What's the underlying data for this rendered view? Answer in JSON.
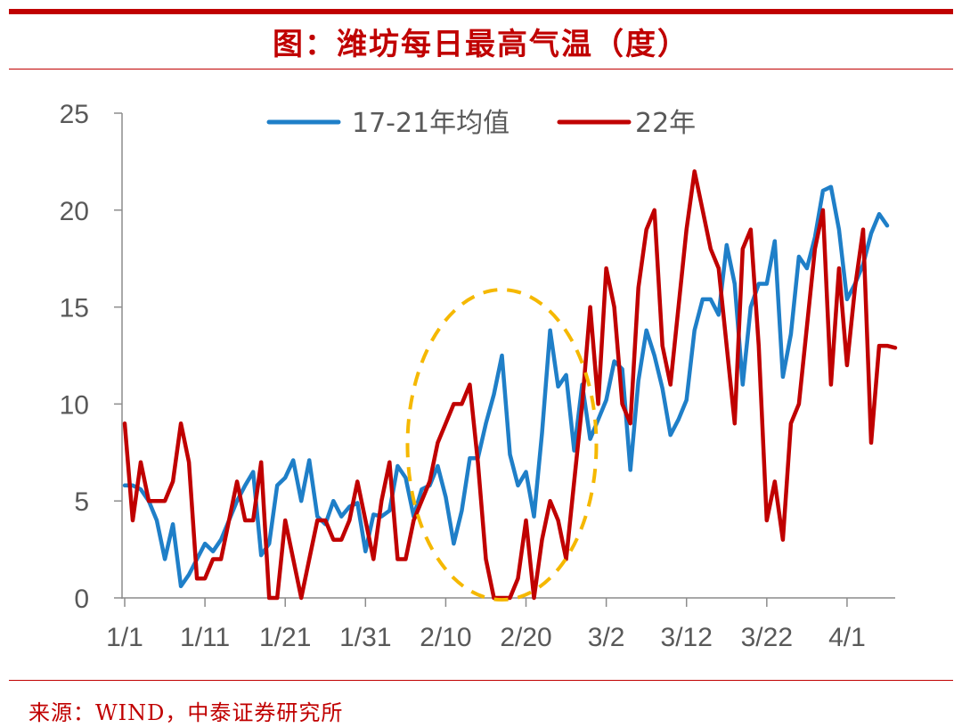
{
  "title": "图：潍坊每日最高气温（度）",
  "source": "来源：WIND，中泰证券研究所",
  "chart_data": {
    "type": "line",
    "ylim": [
      0,
      25
    ],
    "yticks": [
      "0",
      "5",
      "10",
      "15",
      "20",
      "25"
    ],
    "xtick_labels": [
      "1/1",
      "1/11",
      "1/21",
      "1/31",
      "2/10",
      "2/20",
      "3/2",
      "3/12",
      "3/22",
      "4/1"
    ],
    "legend_position": "top",
    "series": [
      {
        "name": "17-21年均值",
        "color": "#1F7FC8",
        "values": [
          5.8,
          5.8,
          5.6,
          5,
          4,
          2,
          3.8,
          0.6,
          1.2,
          2,
          2.8,
          2.4,
          3,
          4,
          5,
          5.8,
          6.5,
          2.2,
          2.8,
          5.8,
          6.2,
          7.1,
          5,
          7.1,
          4.2,
          3.8,
          5,
          4.2,
          4.7,
          4.9,
          2.4,
          4.3,
          4.2,
          4.5,
          6.8,
          6.2,
          4.2,
          5.6,
          5.8,
          6.8,
          5.2,
          2.8,
          4.5,
          7.2,
          7.2,
          9,
          10.5,
          12.5,
          7.4,
          5.8,
          6.5,
          4.2,
          8.5,
          13.8,
          10.9,
          11.5,
          7.6,
          11,
          8.2,
          9.2,
          10.2,
          12.2,
          11.8,
          6.6,
          11.2,
          13.8,
          12.5,
          10.8,
          8.4,
          9.2,
          10.2,
          13.8,
          15.4,
          15.4,
          14.6,
          18.2,
          16.2,
          11,
          15,
          16.2,
          16.2,
          18.4,
          11.4,
          13.6,
          17.6,
          17,
          18.6,
          21,
          21.2,
          19,
          15.4,
          16.2,
          17.2,
          18.8,
          19.8,
          19.2
        ]
      },
      {
        "name": "22年",
        "color": "#C00000",
        "values": [
          9,
          4,
          7,
          5,
          5,
          5,
          6,
          9,
          7,
          1,
          1,
          2,
          2,
          4,
          6,
          4,
          4,
          7,
          0,
          0,
          4,
          2,
          0,
          2,
          4,
          4,
          3,
          3,
          4,
          6,
          4,
          2,
          5,
          7,
          2,
          2,
          4,
          5,
          6,
          8,
          9,
          10,
          10,
          11,
          7,
          2,
          0,
          0,
          0,
          1,
          4,
          0,
          3,
          5,
          4,
          2,
          6,
          10,
          15,
          10,
          17,
          15,
          10,
          9,
          16,
          19,
          20,
          13,
          11,
          15,
          19,
          22,
          20,
          18,
          17,
          13,
          9,
          18,
          19,
          13,
          4,
          6,
          3,
          9,
          10,
          14,
          18,
          20,
          11,
          17,
          12,
          16,
          19,
          8,
          13,
          13,
          12.9
        ]
      }
    ],
    "annotation": "dashed ellipse highlighting 2/10 – 2/25"
  }
}
